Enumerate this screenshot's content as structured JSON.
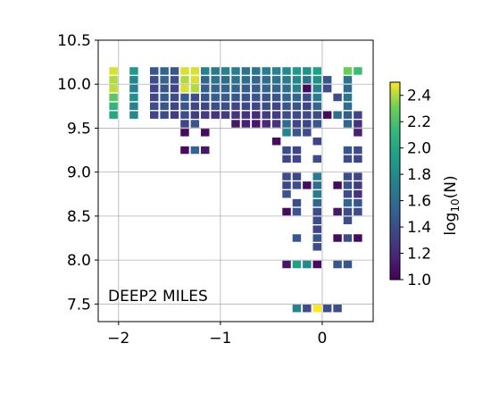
{
  "chart_data": {
    "type": "heatmap",
    "annotation": "DEEP2 MILES",
    "xlim": [
      -2.2,
      0.5
    ],
    "ylim": [
      7.3,
      10.5
    ],
    "xticks": [
      -2,
      -1,
      0
    ],
    "xtick_labels": [
      "−2",
      "−1",
      "0"
    ],
    "yticks": [
      7.5,
      8.0,
      8.5,
      9.0,
      9.5,
      10.0,
      10.5
    ],
    "ytick_labels": [
      "7.5",
      "8.0",
      "8.5",
      "9.0",
      "9.5",
      "10.0",
      "10.5"
    ],
    "grid": true,
    "colorbar": {
      "label_base": "log",
      "label_sub": "10",
      "label_arg": "(N)",
      "range": [
        1.0,
        2.5
      ],
      "colormap": "viridis",
      "ticks": [
        1.0,
        1.2,
        1.4,
        1.6,
        1.8,
        2.0,
        2.2,
        2.4
      ],
      "tick_labels": [
        "1.0",
        "1.2",
        "1.4",
        "1.6",
        "1.8",
        "2.0",
        "2.2",
        "2.4"
      ]
    },
    "cell_size": [
      0.083,
      0.086
    ],
    "cells": [
      {
        "x": -2.05,
        "y": 10.15,
        "v": 2.45
      },
      {
        "x": -2.05,
        "y": 10.05,
        "v": 2.4
      },
      {
        "x": -2.05,
        "y": 9.95,
        "v": 2.42
      },
      {
        "x": -2.05,
        "y": 9.85,
        "v": 2.25
      },
      {
        "x": -2.05,
        "y": 9.75,
        "v": 2.1
      },
      {
        "x": -2.05,
        "y": 9.65,
        "v": 2.0
      },
      {
        "x": -1.85,
        "y": 10.15,
        "v": 1.9
      },
      {
        "x": -1.85,
        "y": 10.05,
        "v": 1.8
      },
      {
        "x": -1.85,
        "y": 9.95,
        "v": 1.75
      },
      {
        "x": -1.85,
        "y": 9.85,
        "v": 1.85
      },
      {
        "x": -1.85,
        "y": 9.75,
        "v": 1.75
      },
      {
        "x": -1.85,
        "y": 9.65,
        "v": 1.8
      },
      {
        "x": -1.65,
        "y": 10.15,
        "v": 1.45
      },
      {
        "x": -1.65,
        "y": 10.05,
        "v": 1.4
      },
      {
        "x": -1.65,
        "y": 9.95,
        "v": 1.35
      },
      {
        "x": -1.65,
        "y": 9.85,
        "v": 1.35
      },
      {
        "x": -1.65,
        "y": 9.75,
        "v": 1.4
      },
      {
        "x": -1.65,
        "y": 9.65,
        "v": 1.35
      },
      {
        "x": -1.55,
        "y": 10.15,
        "v": 1.55
      },
      {
        "x": -1.55,
        "y": 10.05,
        "v": 1.55
      },
      {
        "x": -1.55,
        "y": 9.95,
        "v": 1.45
      },
      {
        "x": -1.55,
        "y": 9.85,
        "v": 1.5
      },
      {
        "x": -1.55,
        "y": 9.75,
        "v": 1.45
      },
      {
        "x": -1.55,
        "y": 9.65,
        "v": 1.4
      },
      {
        "x": -1.45,
        "y": 10.15,
        "v": 1.45
      },
      {
        "x": -1.45,
        "y": 10.05,
        "v": 1.4
      },
      {
        "x": -1.45,
        "y": 9.95,
        "v": 1.35
      },
      {
        "x": -1.45,
        "y": 9.85,
        "v": 1.4
      },
      {
        "x": -1.45,
        "y": 9.75,
        "v": 1.35
      },
      {
        "x": -1.45,
        "y": 9.65,
        "v": 1.3
      },
      {
        "x": -1.35,
        "y": 10.15,
        "v": 2.45
      },
      {
        "x": -1.35,
        "y": 10.05,
        "v": 2.4
      },
      {
        "x": -1.35,
        "y": 9.95,
        "v": 2.45
      },
      {
        "x": -1.35,
        "y": 9.85,
        "v": 1.5
      },
      {
        "x": -1.35,
        "y": 9.75,
        "v": 1.45
      },
      {
        "x": -1.35,
        "y": 9.65,
        "v": 1.4
      },
      {
        "x": -1.35,
        "y": 9.55,
        "v": 1.35
      },
      {
        "x": -1.35,
        "y": 9.45,
        "v": 1.05
      },
      {
        "x": -1.35,
        "y": 9.25,
        "v": 1.05
      },
      {
        "x": -1.25,
        "y": 10.15,
        "v": 2.45
      },
      {
        "x": -1.25,
        "y": 10.05,
        "v": 2.45
      },
      {
        "x": -1.25,
        "y": 9.95,
        "v": 2.4
      },
      {
        "x": -1.25,
        "y": 9.85,
        "v": 1.4
      },
      {
        "x": -1.25,
        "y": 9.75,
        "v": 1.35
      },
      {
        "x": -1.25,
        "y": 9.65,
        "v": 1.3
      },
      {
        "x": -1.25,
        "y": 9.55,
        "v": 1.45
      },
      {
        "x": -1.25,
        "y": 9.25,
        "v": 1.55
      },
      {
        "x": -1.15,
        "y": 10.15,
        "v": 1.75
      },
      {
        "x": -1.15,
        "y": 10.05,
        "v": 1.55
      },
      {
        "x": -1.15,
        "y": 9.95,
        "v": 1.5
      },
      {
        "x": -1.15,
        "y": 9.85,
        "v": 1.45
      },
      {
        "x": -1.15,
        "y": 9.75,
        "v": 1.35
      },
      {
        "x": -1.15,
        "y": 9.65,
        "v": 1.3
      },
      {
        "x": -1.15,
        "y": 9.45,
        "v": 1.05
      },
      {
        "x": -1.15,
        "y": 9.25,
        "v": 1.1
      },
      {
        "x": -1.05,
        "y": 10.15,
        "v": 1.7
      },
      {
        "x": -1.05,
        "y": 10.05,
        "v": 1.65
      },
      {
        "x": -1.05,
        "y": 9.95,
        "v": 1.55
      },
      {
        "x": -1.05,
        "y": 9.85,
        "v": 1.5
      },
      {
        "x": -1.05,
        "y": 9.75,
        "v": 1.4
      },
      {
        "x": -1.05,
        "y": 9.65,
        "v": 1.25
      },
      {
        "x": -0.95,
        "y": 10.15,
        "v": 1.75
      },
      {
        "x": -0.95,
        "y": 10.05,
        "v": 1.6
      },
      {
        "x": -0.95,
        "y": 9.95,
        "v": 1.55
      },
      {
        "x": -0.95,
        "y": 9.85,
        "v": 1.5
      },
      {
        "x": -0.95,
        "y": 9.75,
        "v": 1.4
      },
      {
        "x": -0.95,
        "y": 9.65,
        "v": 1.3
      },
      {
        "x": -0.85,
        "y": 10.15,
        "v": 1.7
      },
      {
        "x": -0.85,
        "y": 10.05,
        "v": 1.65
      },
      {
        "x": -0.85,
        "y": 9.95,
        "v": 1.55
      },
      {
        "x": -0.85,
        "y": 9.85,
        "v": 1.45
      },
      {
        "x": -0.85,
        "y": 9.75,
        "v": 1.35
      },
      {
        "x": -0.85,
        "y": 9.65,
        "v": 1.25
      },
      {
        "x": -0.85,
        "y": 9.55,
        "v": 1.1
      },
      {
        "x": -0.75,
        "y": 10.15,
        "v": 1.65
      },
      {
        "x": -0.75,
        "y": 10.05,
        "v": 1.6
      },
      {
        "x": -0.75,
        "y": 9.95,
        "v": 1.5
      },
      {
        "x": -0.75,
        "y": 9.85,
        "v": 1.45
      },
      {
        "x": -0.75,
        "y": 9.75,
        "v": 1.35
      },
      {
        "x": -0.75,
        "y": 9.65,
        "v": 1.25
      },
      {
        "x": -0.75,
        "y": 9.55,
        "v": 1.15
      },
      {
        "x": -0.65,
        "y": 10.15,
        "v": 1.65
      },
      {
        "x": -0.65,
        "y": 10.05,
        "v": 1.55
      },
      {
        "x": -0.65,
        "y": 9.95,
        "v": 1.5
      },
      {
        "x": -0.65,
        "y": 9.85,
        "v": 1.45
      },
      {
        "x": -0.65,
        "y": 9.75,
        "v": 1.35
      },
      {
        "x": -0.65,
        "y": 9.65,
        "v": 1.2
      },
      {
        "x": -0.65,
        "y": 9.55,
        "v": 1.1
      },
      {
        "x": -0.55,
        "y": 10.15,
        "v": 1.7
      },
      {
        "x": -0.55,
        "y": 10.05,
        "v": 1.6
      },
      {
        "x": -0.55,
        "y": 9.95,
        "v": 1.55
      },
      {
        "x": -0.55,
        "y": 9.85,
        "v": 1.45
      },
      {
        "x": -0.55,
        "y": 9.75,
        "v": 1.4
      },
      {
        "x": -0.55,
        "y": 9.65,
        "v": 1.3
      },
      {
        "x": -0.55,
        "y": 9.55,
        "v": 1.2
      },
      {
        "x": -0.45,
        "y": 10.15,
        "v": 1.75
      },
      {
        "x": -0.45,
        "y": 10.05,
        "v": 1.65
      },
      {
        "x": -0.45,
        "y": 9.95,
        "v": 1.55
      },
      {
        "x": -0.45,
        "y": 9.85,
        "v": 1.45
      },
      {
        "x": -0.45,
        "y": 9.75,
        "v": 1.35
      },
      {
        "x": -0.45,
        "y": 9.65,
        "v": 1.3
      },
      {
        "x": -0.45,
        "y": 9.55,
        "v": 1.25
      },
      {
        "x": -0.45,
        "y": 9.35,
        "v": 1.05
      },
      {
        "x": -0.35,
        "y": 10.15,
        "v": 1.8
      },
      {
        "x": -0.35,
        "y": 10.05,
        "v": 1.7
      },
      {
        "x": -0.35,
        "y": 9.95,
        "v": 1.6
      },
      {
        "x": -0.35,
        "y": 9.85,
        "v": 1.55
      },
      {
        "x": -0.35,
        "y": 9.75,
        "v": 1.45
      },
      {
        "x": -0.35,
        "y": 9.65,
        "v": 1.4
      },
      {
        "x": -0.35,
        "y": 9.55,
        "v": 1.6
      },
      {
        "x": -0.35,
        "y": 9.45,
        "v": 1.75
      },
      {
        "x": -0.35,
        "y": 9.25,
        "v": 1.4
      },
      {
        "x": -0.35,
        "y": 9.15,
        "v": 1.35
      },
      {
        "x": -0.35,
        "y": 8.95,
        "v": 1.4
      },
      {
        "x": -0.35,
        "y": 8.85,
        "v": 1.35
      },
      {
        "x": -0.35,
        "y": 8.75,
        "v": 1.45
      },
      {
        "x": -0.35,
        "y": 8.55,
        "v": 1.05
      },
      {
        "x": -0.35,
        "y": 7.95,
        "v": 1.1
      },
      {
        "x": -0.25,
        "y": 10.15,
        "v": 1.9
      },
      {
        "x": -0.25,
        "y": 10.05,
        "v": 1.8
      },
      {
        "x": -0.25,
        "y": 9.95,
        "v": 1.75
      },
      {
        "x": -0.25,
        "y": 9.85,
        "v": 1.55
      },
      {
        "x": -0.25,
        "y": 9.75,
        "v": 1.45
      },
      {
        "x": -0.25,
        "y": 9.65,
        "v": 1.4
      },
      {
        "x": -0.25,
        "y": 9.55,
        "v": 1.35
      },
      {
        "x": -0.25,
        "y": 9.45,
        "v": 1.45
      },
      {
        "x": -0.25,
        "y": 9.25,
        "v": 1.35
      },
      {
        "x": -0.25,
        "y": 9.15,
        "v": 1.35
      },
      {
        "x": -0.25,
        "y": 8.95,
        "v": 1.35
      },
      {
        "x": -0.25,
        "y": 8.85,
        "v": 1.4
      },
      {
        "x": -0.25,
        "y": 8.65,
        "v": 1.4
      },
      {
        "x": -0.25,
        "y": 8.55,
        "v": 1.45
      },
      {
        "x": -0.25,
        "y": 8.25,
        "v": 1.45
      },
      {
        "x": -0.25,
        "y": 7.95,
        "v": 1.95
      },
      {
        "x": -0.25,
        "y": 7.45,
        "v": 1.75
      },
      {
        "x": -0.15,
        "y": 10.15,
        "v": 1.85
      },
      {
        "x": -0.15,
        "y": 10.05,
        "v": 1.65
      },
      {
        "x": -0.15,
        "y": 9.95,
        "v": 1.05
      },
      {
        "x": -0.15,
        "y": 9.85,
        "v": 1.4
      },
      {
        "x": -0.15,
        "y": 9.75,
        "v": 1.35
      },
      {
        "x": -0.15,
        "y": 9.65,
        "v": 1.4
      },
      {
        "x": -0.15,
        "y": 9.55,
        "v": 1.35
      },
      {
        "x": -0.15,
        "y": 9.45,
        "v": 1.4
      },
      {
        "x": -0.15,
        "y": 8.85,
        "v": 1.05
      },
      {
        "x": -0.15,
        "y": 7.95,
        "v": 1.8
      },
      {
        "x": -0.15,
        "y": 7.45,
        "v": 1.4
      },
      {
        "x": -0.05,
        "y": 10.15,
        "v": 1.95
      },
      {
        "x": -0.05,
        "y": 10.05,
        "v": 1.85
      },
      {
        "x": -0.05,
        "y": 9.95,
        "v": 1.75
      },
      {
        "x": -0.05,
        "y": 9.85,
        "v": 1.7
      },
      {
        "x": -0.05,
        "y": 9.75,
        "v": 1.55
      },
      {
        "x": -0.05,
        "y": 9.65,
        "v": 1.4
      },
      {
        "x": -0.05,
        "y": 9.55,
        "v": 1.45
      },
      {
        "x": -0.05,
        "y": 9.35,
        "v": 1.35
      },
      {
        "x": -0.05,
        "y": 9.15,
        "v": 1.4
      },
      {
        "x": -0.05,
        "y": 8.95,
        "v": 1.7
      },
      {
        "x": -0.05,
        "y": 8.85,
        "v": 1.6
      },
      {
        "x": -0.05,
        "y": 8.75,
        "v": 1.7
      },
      {
        "x": -0.05,
        "y": 8.65,
        "v": 1.55
      },
      {
        "x": -0.05,
        "y": 8.55,
        "v": 1.4
      },
      {
        "x": -0.05,
        "y": 8.45,
        "v": 1.4
      },
      {
        "x": -0.05,
        "y": 8.35,
        "v": 1.35
      },
      {
        "x": -0.05,
        "y": 8.25,
        "v": 1.45
      },
      {
        "x": -0.05,
        "y": 8.15,
        "v": 1.4
      },
      {
        "x": -0.05,
        "y": 7.95,
        "v": 1.05
      },
      {
        "x": -0.05,
        "y": 7.45,
        "v": 2.5
      },
      {
        "x": 0.05,
        "y": 10.05,
        "v": 1.45
      },
      {
        "x": 0.05,
        "y": 9.95,
        "v": 1.4
      },
      {
        "x": 0.05,
        "y": 9.65,
        "v": 1.05
      },
      {
        "x": 0.05,
        "y": 7.45,
        "v": 1.4
      },
      {
        "x": 0.15,
        "y": 9.85,
        "v": 1.4
      },
      {
        "x": 0.15,
        "y": 9.65,
        "v": 1.6
      },
      {
        "x": 0.15,
        "y": 8.85,
        "v": 1.05
      },
      {
        "x": 0.15,
        "y": 8.55,
        "v": 1.1
      },
      {
        "x": 0.15,
        "y": 8.25,
        "v": 1.05
      },
      {
        "x": 0.15,
        "y": 7.95,
        "v": 1.45
      },
      {
        "x": 0.15,
        "y": 7.45,
        "v": 1.4
      },
      {
        "x": 0.25,
        "y": 10.15,
        "v": 2.3
      },
      {
        "x": 0.25,
        "y": 10.05,
        "v": 1.65
      },
      {
        "x": 0.25,
        "y": 9.95,
        "v": 1.6
      },
      {
        "x": 0.25,
        "y": 9.85,
        "v": 1.65
      },
      {
        "x": 0.25,
        "y": 9.75,
        "v": 1.6
      },
      {
        "x": 0.25,
        "y": 9.65,
        "v": 1.5
      },
      {
        "x": 0.25,
        "y": 9.55,
        "v": 1.55
      },
      {
        "x": 0.25,
        "y": 9.25,
        "v": 1.45
      },
      {
        "x": 0.25,
        "y": 9.15,
        "v": 1.4
      },
      {
        "x": 0.25,
        "y": 8.95,
        "v": 1.4
      },
      {
        "x": 0.25,
        "y": 8.85,
        "v": 1.45
      },
      {
        "x": 0.25,
        "y": 8.75,
        "v": 1.4
      },
      {
        "x": 0.25,
        "y": 8.65,
        "v": 1.55
      },
      {
        "x": 0.25,
        "y": 8.55,
        "v": 1.4
      },
      {
        "x": 0.25,
        "y": 8.45,
        "v": 1.4
      },
      {
        "x": 0.25,
        "y": 8.25,
        "v": 1.4
      },
      {
        "x": 0.25,
        "y": 7.95,
        "v": 1.45
      },
      {
        "x": 0.35,
        "y": 10.15,
        "v": 2.15
      },
      {
        "x": 0.35,
        "y": 9.65,
        "v": 1.35
      },
      {
        "x": 0.35,
        "y": 9.55,
        "v": 1.25
      },
      {
        "x": 0.35,
        "y": 9.45,
        "v": 1.15
      },
      {
        "x": 0.35,
        "y": 9.25,
        "v": 1.4
      },
      {
        "x": 0.35,
        "y": 9.15,
        "v": 1.35
      },
      {
        "x": 0.35,
        "y": 8.95,
        "v": 1.35
      },
      {
        "x": 0.35,
        "y": 8.85,
        "v": 1.3
      },
      {
        "x": 0.35,
        "y": 8.75,
        "v": 1.25
      },
      {
        "x": 0.35,
        "y": 8.65,
        "v": 1.45
      },
      {
        "x": 0.35,
        "y": 8.55,
        "v": 1.4
      },
      {
        "x": 0.35,
        "y": 8.25,
        "v": 1.05
      }
    ]
  }
}
